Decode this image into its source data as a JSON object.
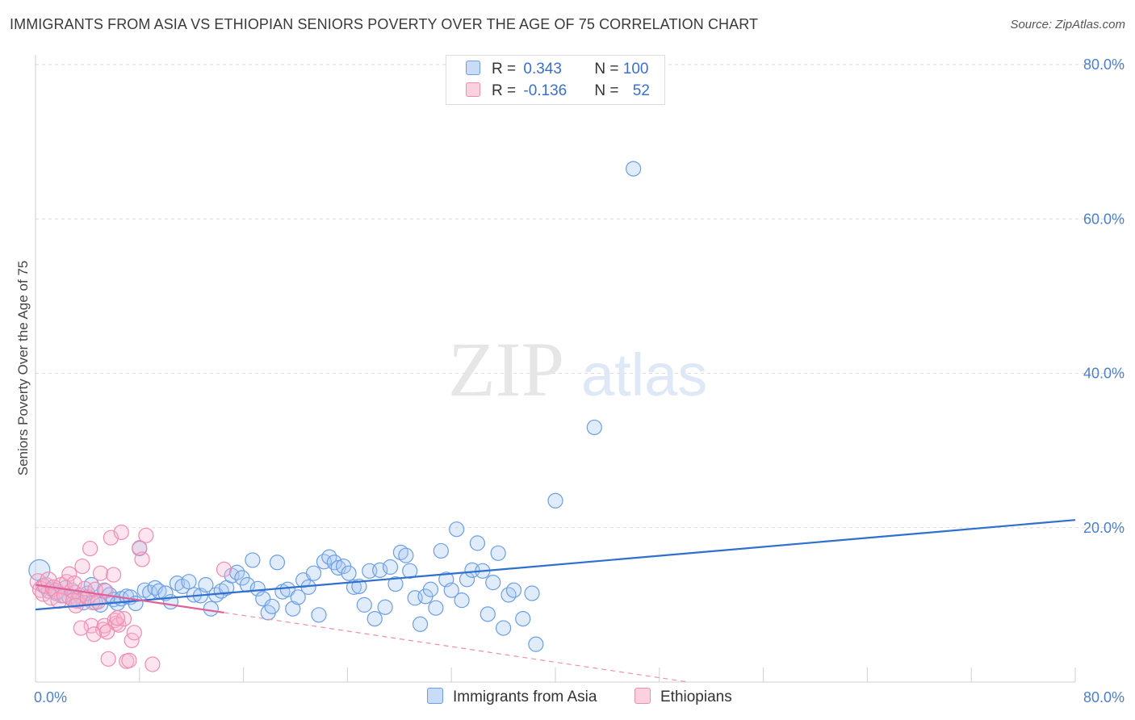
{
  "title": "IMMIGRANTS FROM ASIA VS ETHIOPIAN SENIORS POVERTY OVER THE AGE OF 75 CORRELATION CHART",
  "source": "Source: ZipAtlas.com",
  "watermark": {
    "zip": "ZIP",
    "atlas": "atlas"
  },
  "legend": {
    "rows": [
      {
        "r_key": "R = ",
        "r_val": "0.343",
        "n_key": "N = ",
        "n_val": "100",
        "color": "#6b9ee8"
      },
      {
        "r_key": "R = ",
        "r_val": "-0.136",
        "n_key": "N = ",
        "n_val": "52",
        "color": "#f08cb0"
      }
    ]
  },
  "bottom_legend": [
    {
      "label": "Immigrants from Asia",
      "color": "#6b9ee8"
    },
    {
      "label": "Ethiopians",
      "color": "#f08cb0"
    }
  ],
  "chart_data": {
    "type": "scatter",
    "title": "IMMIGRANTS FROM ASIA VS ETHIOPIAN SENIORS POVERTY OVER THE AGE OF 75 CORRELATION CHART",
    "xlabel": "",
    "ylabel": "Seniors Poverty Over the Age of 75",
    "xlim": [
      0,
      80
    ],
    "ylim": [
      0,
      80
    ],
    "x_tick_labels": [
      "0.0%",
      "80.0%"
    ],
    "y_tick_labels": [
      "20.0%",
      "40.0%",
      "60.0%",
      "80.0%"
    ],
    "y_ticks": [
      20,
      40,
      60,
      80
    ],
    "grid": true,
    "legend_position": "top-center",
    "series": [
      {
        "name": "Immigrants from Asia",
        "color": "#6b9ee8",
        "trend": {
          "x": [
            0,
            80
          ],
          "y": [
            9.4,
            21.0
          ],
          "style": "solid"
        },
        "points": [
          [
            0.3,
            14.5
          ],
          [
            0.6,
            12.5
          ],
          [
            1.0,
            11.8
          ],
          [
            1.3,
            12.0
          ],
          [
            1.6,
            11.5
          ],
          [
            2.0,
            11.2
          ],
          [
            2.3,
            12.2
          ],
          [
            2.6,
            11.0
          ],
          [
            3.0,
            11.6
          ],
          [
            3.3,
            10.6
          ],
          [
            3.7,
            10.3
          ],
          [
            4.0,
            11.5
          ],
          [
            4.3,
            12.6
          ],
          [
            4.6,
            10.3
          ],
          [
            5.0,
            10.0
          ],
          [
            5.3,
            11.9
          ],
          [
            5.7,
            11.3
          ],
          [
            6.0,
            10.7
          ],
          [
            6.3,
            10.2
          ],
          [
            6.6,
            10.8
          ],
          [
            7.0,
            11.1
          ],
          [
            7.3,
            11.0
          ],
          [
            7.7,
            10.2
          ],
          [
            8.0,
            17.3
          ],
          [
            8.4,
            11.9
          ],
          [
            8.8,
            11.6
          ],
          [
            9.2,
            12.2
          ],
          [
            9.5,
            11.8
          ],
          [
            10.0,
            11.5
          ],
          [
            10.4,
            10.4
          ],
          [
            10.9,
            12.8
          ],
          [
            11.3,
            12.4
          ],
          [
            11.8,
            13.0
          ],
          [
            12.2,
            11.3
          ],
          [
            12.7,
            11.2
          ],
          [
            13.1,
            12.6
          ],
          [
            13.5,
            9.5
          ],
          [
            13.9,
            11.3
          ],
          [
            14.3,
            11.8
          ],
          [
            14.7,
            12.2
          ],
          [
            15.1,
            13.8
          ],
          [
            15.5,
            14.2
          ],
          [
            15.9,
            13.5
          ],
          [
            16.3,
            12.6
          ],
          [
            16.7,
            15.8
          ],
          [
            17.1,
            12.1
          ],
          [
            17.5,
            10.8
          ],
          [
            17.9,
            9.0
          ],
          [
            18.2,
            9.8
          ],
          [
            18.6,
            15.5
          ],
          [
            19.0,
            11.7
          ],
          [
            19.4,
            12.0
          ],
          [
            19.8,
            9.5
          ],
          [
            20.2,
            11.0
          ],
          [
            20.6,
            13.2
          ],
          [
            21.0,
            12.3
          ],
          [
            21.4,
            14.1
          ],
          [
            21.8,
            8.7
          ],
          [
            22.2,
            15.6
          ],
          [
            22.6,
            16.2
          ],
          [
            23.0,
            15.5
          ],
          [
            23.3,
            14.8
          ],
          [
            23.7,
            15.0
          ],
          [
            24.1,
            14.1
          ],
          [
            24.5,
            12.3
          ],
          [
            24.9,
            12.4
          ],
          [
            25.3,
            10.0
          ],
          [
            25.7,
            14.4
          ],
          [
            26.1,
            8.2
          ],
          [
            26.5,
            14.5
          ],
          [
            26.9,
            9.7
          ],
          [
            27.3,
            14.9
          ],
          [
            27.7,
            12.7
          ],
          [
            28.1,
            16.8
          ],
          [
            28.5,
            16.4
          ],
          [
            28.8,
            14.4
          ],
          [
            29.2,
            10.9
          ],
          [
            29.6,
            7.5
          ],
          [
            30.0,
            11.1
          ],
          [
            30.4,
            12.0
          ],
          [
            30.8,
            9.6
          ],
          [
            31.2,
            17.0
          ],
          [
            31.6,
            13.3
          ],
          [
            32.0,
            11.9
          ],
          [
            32.4,
            19.8
          ],
          [
            32.8,
            10.6
          ],
          [
            33.2,
            13.3
          ],
          [
            33.6,
            14.5
          ],
          [
            34.0,
            18.0
          ],
          [
            34.4,
            14.4
          ],
          [
            34.8,
            8.8
          ],
          [
            35.2,
            12.9
          ],
          [
            35.6,
            16.7
          ],
          [
            36.0,
            7.0
          ],
          [
            36.4,
            11.3
          ],
          [
            36.8,
            11.9
          ],
          [
            37.5,
            8.2
          ],
          [
            38.2,
            11.5
          ],
          [
            38.5,
            4.9
          ],
          [
            40.0,
            23.5
          ],
          [
            43.0,
            33.0
          ],
          [
            46.0,
            66.5
          ]
        ]
      },
      {
        "name": "Ethiopians",
        "color": "#f08cb0",
        "trend": {
          "x": [
            0,
            14.5
          ],
          "y": [
            12.6,
            9.0
          ],
          "style": "solid",
          "extended": {
            "x": [
              14.5,
              80
            ],
            "y": [
              9.0,
              -7.5
            ]
          }
        },
        "points": [
          [
            0.2,
            13.0
          ],
          [
            0.4,
            12.0
          ],
          [
            0.6,
            11.5
          ],
          [
            0.8,
            12.5
          ],
          [
            1.0,
            13.2
          ],
          [
            1.2,
            11.0
          ],
          [
            1.4,
            12.2
          ],
          [
            1.6,
            11.8
          ],
          [
            1.8,
            10.6
          ],
          [
            2.0,
            12.5
          ],
          [
            2.2,
            11.2
          ],
          [
            2.4,
            13.0
          ],
          [
            2.6,
            14.0
          ],
          [
            2.8,
            11.9
          ],
          [
            3.0,
            12.8
          ],
          [
            3.2,
            10.5
          ],
          [
            3.4,
            11.2
          ],
          [
            3.6,
            15.0
          ],
          [
            3.8,
            12.1
          ],
          [
            4.0,
            11.0
          ],
          [
            4.2,
            17.3
          ],
          [
            4.3,
            7.3
          ],
          [
            4.4,
            10.3
          ],
          [
            4.6,
            12.0
          ],
          [
            4.8,
            10.4
          ],
          [
            5.0,
            14.1
          ],
          [
            5.2,
            6.8
          ],
          [
            5.3,
            7.3
          ],
          [
            5.4,
            11.8
          ],
          [
            5.6,
            3.0
          ],
          [
            5.8,
            18.7
          ],
          [
            6.0,
            13.9
          ],
          [
            6.1,
            8.0
          ],
          [
            6.2,
            7.6
          ],
          [
            6.4,
            7.4
          ],
          [
            6.6,
            19.4
          ],
          [
            6.8,
            8.2
          ],
          [
            7.0,
            2.7
          ],
          [
            7.2,
            2.8
          ],
          [
            7.4,
            5.4
          ],
          [
            7.6,
            6.4
          ],
          [
            8.0,
            17.4
          ],
          [
            8.2,
            15.9
          ],
          [
            8.5,
            19.0
          ],
          [
            9.0,
            2.3
          ],
          [
            2.9,
            10.6
          ],
          [
            3.5,
            7.0
          ],
          [
            4.5,
            6.2
          ],
          [
            5.5,
            6.5
          ],
          [
            6.3,
            8.3
          ],
          [
            14.5,
            14.6
          ],
          [
            3.1,
            9.9
          ]
        ]
      }
    ]
  }
}
